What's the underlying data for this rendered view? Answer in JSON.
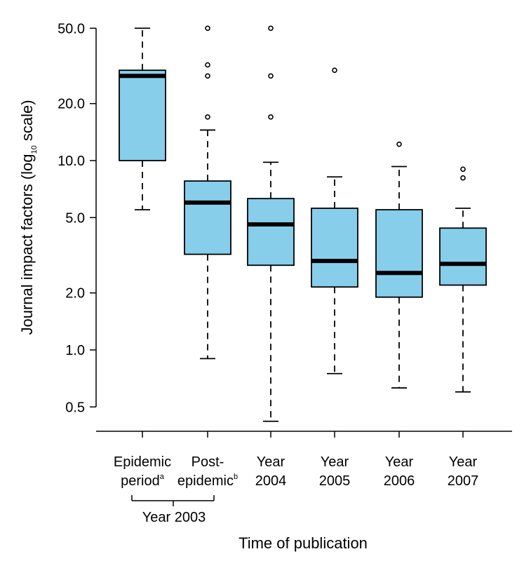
{
  "chart_data": {
    "type": "boxplot",
    "scale": "log10",
    "ylabel_main": "Journal impact factors (log",
    "ylabel_sub": "10",
    "ylabel_tail": " scale)",
    "xlabel": "Time of publication",
    "ylim": [
      0.4,
      55
    ],
    "yticks": [
      0.5,
      1.0,
      2.0,
      5.0,
      10.0,
      20.0,
      50.0
    ],
    "ytick_labels": [
      "0.5",
      "1.0",
      "2.0",
      "5.0",
      "10.0",
      "20.0",
      "50.0"
    ],
    "box_fill": "#87CEEB",
    "median_color": "#000000",
    "group_bracket_label": "Year 2003",
    "categories": [
      {
        "line1": "Epidemic",
        "line2": "period",
        "sup": "a",
        "whisker_low": 5.5,
        "q1": 10.0,
        "median": 28.0,
        "q3": 30.0,
        "whisker_high": 50.0,
        "outliers": []
      },
      {
        "line1": "Post-",
        "line2": "epidemic",
        "sup": "b",
        "whisker_low": 0.9,
        "q1": 3.2,
        "median": 6.0,
        "q3": 7.8,
        "whisker_high": 14.5,
        "outliers": [
          17.0,
          28.0,
          32.0,
          50.0
        ]
      },
      {
        "line1": "Year",
        "line2": "2004",
        "sup": "",
        "whisker_low": 0.42,
        "q1": 2.8,
        "median": 4.6,
        "q3": 6.3,
        "whisker_high": 9.8,
        "outliers": [
          17.0,
          28.0,
          50.0
        ]
      },
      {
        "line1": "Year",
        "line2": "2005",
        "sup": "",
        "whisker_low": 0.75,
        "q1": 2.15,
        "median": 2.95,
        "q3": 5.6,
        "whisker_high": 8.2,
        "outliers": [
          30.0
        ]
      },
      {
        "line1": "Year",
        "line2": "2006",
        "sup": "",
        "whisker_low": 0.63,
        "q1": 1.9,
        "median": 2.55,
        "q3": 5.5,
        "whisker_high": 9.3,
        "outliers": [
          12.2
        ]
      },
      {
        "line1": "Year",
        "line2": "2007",
        "sup": "",
        "whisker_low": 0.6,
        "q1": 2.2,
        "median": 2.85,
        "q3": 4.4,
        "whisker_high": 5.6,
        "outliers": [
          8.1,
          9.0
        ]
      }
    ]
  }
}
